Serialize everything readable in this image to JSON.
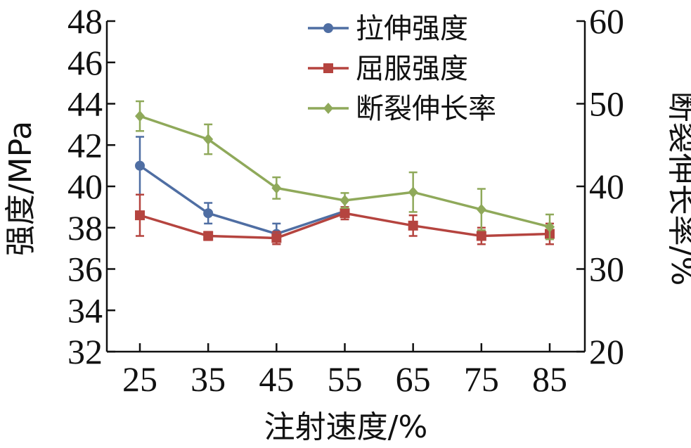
{
  "chart_data": {
    "type": "line",
    "x": [
      25,
      35,
      45,
      55,
      65,
      75,
      85
    ],
    "xlabel": "注射速度/%",
    "ylabel_left": "强度/MPa",
    "ylabel_right": "断裂伸长率/%",
    "ylim_left": [
      32,
      48
    ],
    "ylim_right": [
      20,
      60
    ],
    "yticks_left": [
      32,
      34,
      36,
      38,
      40,
      42,
      44,
      46,
      48
    ],
    "yticks_right": [
      20,
      30,
      40,
      50,
      60
    ],
    "legend_position": "top-right",
    "series": [
      {
        "name": "拉伸强度",
        "axis": "left",
        "color": "#4f6ea3",
        "marker": "circle",
        "values": [
          41.0,
          38.7,
          37.7,
          38.8,
          null,
          null,
          null
        ],
        "errors": [
          1.4,
          0.5,
          0.5,
          0.2,
          null,
          null,
          null
        ]
      },
      {
        "name": "屈服强度",
        "axis": "left",
        "color": "#b5443f",
        "marker": "square",
        "values": [
          38.6,
          37.6,
          37.5,
          38.7,
          38.1,
          37.6,
          37.7
        ],
        "errors": [
          1.0,
          0.2,
          0.3,
          0.3,
          0.5,
          0.4,
          0.5
        ]
      },
      {
        "name": "断裂伸长率",
        "axis": "right",
        "color": "#8fa95a",
        "marker": "diamond",
        "values": [
          48.5,
          45.7,
          39.8,
          38.3,
          39.3,
          37.2,
          35.1
        ],
        "errors": [
          1.8,
          1.8,
          1.3,
          0.9,
          2.4,
          2.5,
          1.5
        ]
      }
    ]
  }
}
